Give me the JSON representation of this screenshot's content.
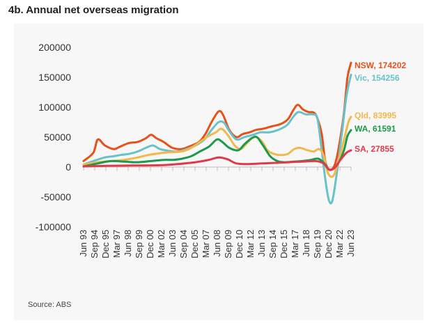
{
  "title": "4b. Annual net overseas migration",
  "source": "Source: ABS",
  "chart_data": {
    "type": "line",
    "title": "4b. Annual net overseas migration",
    "xlabel": "",
    "ylabel": "",
    "ylim": [
      -100000,
      200000
    ],
    "yticks": [
      -100000,
      -50000,
      0,
      50000,
      100000,
      150000,
      200000
    ],
    "ytick_labels": [
      "-100000",
      "-50000",
      "0",
      "50000",
      "100000",
      "150000",
      "200000"
    ],
    "xtick_labels": [
      "Jun 93",
      "Sep 94",
      "Dec 95",
      "Mar 97",
      "Jun 98",
      "Sep 99",
      "Dec 00",
      "Mar 02",
      "Jun 03",
      "Sep 04",
      "Dec 05",
      "Mar 07",
      "Jun 08",
      "Sep 09",
      "Dec 10",
      "Mar 12",
      "Jun 13",
      "Sep 14",
      "Dec 15",
      "Mar 17",
      "Jun 18",
      "Sep 19",
      "Dec 20",
      "Mar 22",
      "Jun 23"
    ],
    "xrange": [
      1993.4,
      2023.5
    ],
    "grid": false,
    "legend": "end-of-line labels",
    "series": [
      {
        "name": "NSW",
        "end_label": "NSW, 174202",
        "color": "#e8501a",
        "x": [
          1993.4,
          1994.5,
          1995.0,
          1995.8,
          1996.8,
          1997.5,
          1998.5,
          1999.5,
          2000.4,
          2001.0,
          2001.6,
          2002.4,
          2003.4,
          2004.4,
          2005.4,
          2006.4,
          2007.1,
          2007.8,
          2008.6,
          2009.1,
          2009.8,
          2010.6,
          2011.3,
          2012.1,
          2012.8,
          2013.6,
          2014.6,
          2015.6,
          2016.4,
          2017.0,
          2017.5,
          2018.1,
          2018.7,
          2019.3,
          2019.7,
          2020.2,
          2020.6,
          2021.1,
          2021.7,
          2022.2,
          2022.7,
          2023.1,
          2023.5
        ],
        "y": [
          10000,
          24000,
          46000,
          36000,
          30000,
          34000,
          40000,
          42000,
          48000,
          54000,
          48000,
          42000,
          32000,
          30000,
          35000,
          42000,
          55000,
          75000,
          93000,
          87000,
          62000,
          50000,
          55000,
          58000,
          62000,
          64000,
          68000,
          72000,
          80000,
          95000,
          104000,
          96000,
          92000,
          91000,
          82000,
          55000,
          10000,
          -5000,
          5000,
          40000,
          90000,
          150000,
          174202
        ]
      },
      {
        "name": "Vic",
        "end_label": "Vic, 154256",
        "color": "#67c2c9",
        "x": [
          1993.4,
          1994.5,
          1995.8,
          1996.8,
          1997.5,
          1998.5,
          1999.5,
          2000.4,
          2001.2,
          2002.0,
          2003.0,
          2004.0,
          2005.0,
          2006.0,
          2007.0,
          2007.8,
          2008.6,
          2009.2,
          2009.8,
          2010.6,
          2011.5,
          2012.5,
          2013.3,
          2014.3,
          2015.3,
          2016.3,
          2017.0,
          2017.6,
          2018.4,
          2019.2,
          2019.7,
          2020.1,
          2020.6,
          2021.0,
          2021.4,
          2021.9,
          2022.5,
          2023.0,
          2023.5
        ],
        "y": [
          4000,
          10000,
          16000,
          18000,
          20000,
          22000,
          26000,
          32000,
          36000,
          30000,
          27000,
          26000,
          30000,
          36000,
          46000,
          62000,
          75000,
          74000,
          60000,
          46000,
          50000,
          54000,
          58000,
          58000,
          62000,
          70000,
          84000,
          92000,
          88000,
          88000,
          82000,
          40000,
          -20000,
          -55000,
          -56000,
          -10000,
          60000,
          120000,
          154256
        ]
      },
      {
        "name": "Qld",
        "end_label": "Qld, 83995",
        "color": "#f2b84b",
        "x": [
          1993.4,
          1995.0,
          1996.5,
          1998.0,
          1999.5,
          2000.6,
          2001.5,
          2002.5,
          2003.5,
          2004.5,
          2005.5,
          2006.5,
          2007.5,
          2008.3,
          2008.9,
          2009.6,
          2010.4,
          2011.1,
          2011.8,
          2012.6,
          2013.4,
          2014.1,
          2014.8,
          2015.6,
          2016.4,
          2017.1,
          2017.8,
          2018.6,
          2019.3,
          2019.9,
          2020.4,
          2020.9,
          2021.5,
          2022.1,
          2022.7,
          2023.2,
          2023.5
        ],
        "y": [
          4000,
          8000,
          10000,
          12000,
          16000,
          20000,
          22000,
          24000,
          25000,
          26000,
          32000,
          42000,
          52000,
          58000,
          64000,
          54000,
          36000,
          30000,
          40000,
          50000,
          44000,
          28000,
          22000,
          20000,
          22000,
          30000,
          32000,
          28000,
          26000,
          30000,
          20000,
          -10000,
          -15000,
          10000,
          45000,
          75000,
          83995
        ]
      },
      {
        "name": "WA",
        "end_label": "WA, 61591",
        "color": "#1a9a4a",
        "x": [
          1993.4,
          1995.0,
          1996.5,
          1998.0,
          1999.5,
          2001.0,
          2002.5,
          2003.5,
          2004.5,
          2005.5,
          2006.5,
          2007.5,
          2008.4,
          2009.0,
          2009.8,
          2010.8,
          2011.5,
          2012.3,
          2012.9,
          2013.6,
          2014.4,
          2015.2,
          2016.0,
          2017.0,
          2018.0,
          2019.0,
          2019.8,
          2020.5,
          2021.0,
          2021.6,
          2022.2,
          2022.7,
          2023.1,
          2023.5
        ],
        "y": [
          1000,
          6000,
          10000,
          9000,
          8000,
          10000,
          12000,
          12000,
          14000,
          18000,
          26000,
          34000,
          46000,
          42000,
          32000,
          28000,
          38000,
          48000,
          50000,
          36000,
          18000,
          10000,
          8000,
          9000,
          10000,
          12000,
          14000,
          6000,
          -4000,
          -2000,
          10000,
          28000,
          52000,
          61591
        ]
      },
      {
        "name": "SA",
        "end_label": "SA, 27855",
        "color": "#e03a4a",
        "x": [
          1993.4,
          1996.0,
          1999.0,
          2002.0,
          2004.0,
          2006.0,
          2007.5,
          2008.6,
          2009.6,
          2010.6,
          2012.0,
          2013.5,
          2015.0,
          2016.5,
          2018.0,
          2019.5,
          2020.4,
          2021.0,
          2021.6,
          2022.3,
          2023.0,
          2023.5
        ],
        "y": [
          1000,
          2000,
          2500,
          3000,
          5000,
          8000,
          12000,
          16000,
          13000,
          6000,
          5000,
          6000,
          7000,
          8000,
          9000,
          10000,
          6000,
          -4000,
          -2000,
          12000,
          24000,
          27855
        ]
      }
    ]
  }
}
